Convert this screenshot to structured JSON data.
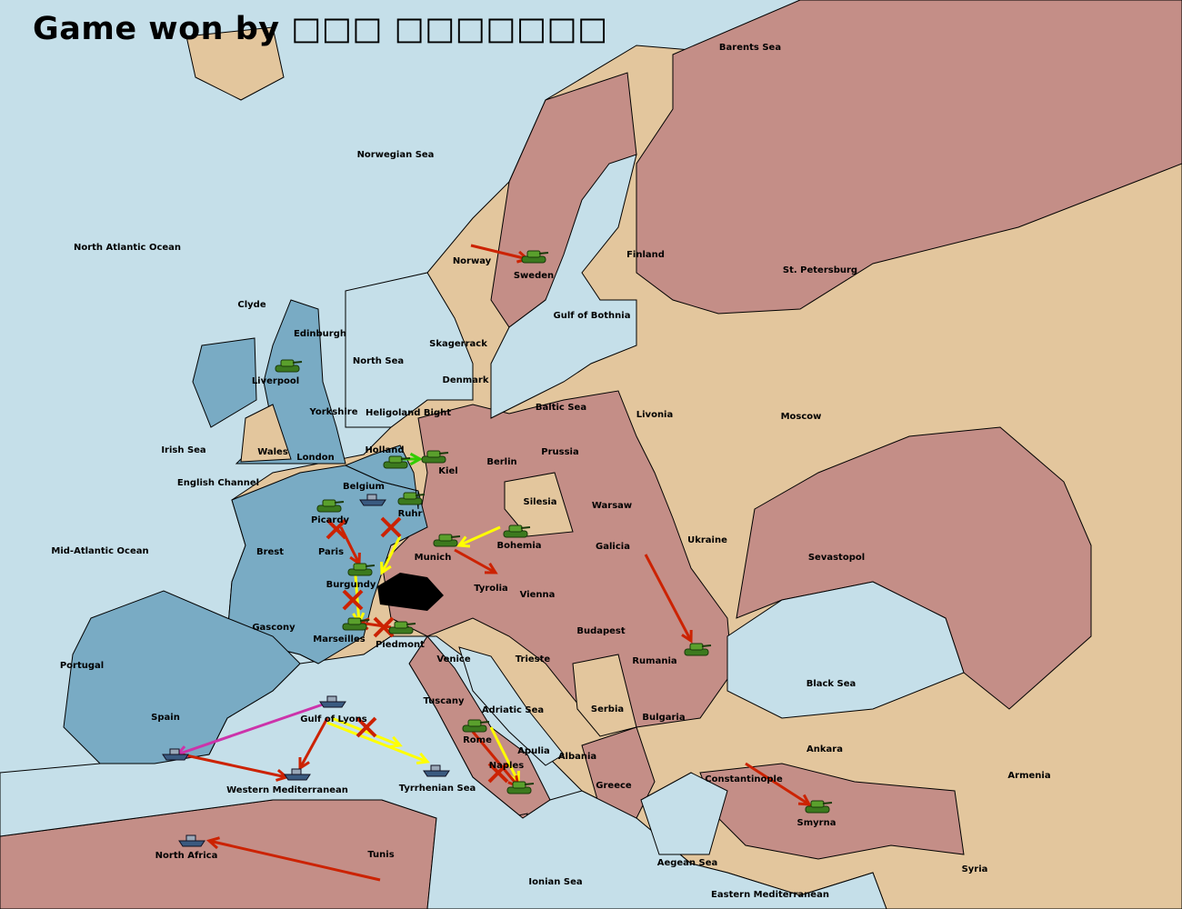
{
  "title": "Game won by □□□ □□□□□□□",
  "colors": {
    "sea": "#c5dfe9",
    "neutral": "#e3c69d",
    "power_red": "#c48e87",
    "power_blue": "#79abc4",
    "switzerland": "#000000",
    "move_arrow": "#cc2200",
    "support_arrow": "#ffff00",
    "convoy_arrow": "#cc33aa",
    "hold_arrow": "#33cc00"
  },
  "labels": [
    "Barents Sea",
    "Norwegian Sea",
    "North Atlantic Ocean",
    "Norway",
    "Sweden",
    "Finland",
    "St. Petersburg",
    "Gulf of Bothnia",
    "Clyde",
    "Edinburgh",
    "Skagerrack",
    "North Sea",
    "Liverpool",
    "Denmark",
    "Yorkshire",
    "Baltic Sea",
    "Livonia",
    "Moscow",
    "Heligoland Bight",
    "Irish Sea",
    "Wales",
    "London",
    "Holland",
    "Kiel",
    "Berlin",
    "Prussia",
    "English Channel",
    "Belgium",
    "Ruhr",
    "Silesia",
    "Warsaw",
    "Picardy",
    "Paris",
    "Brest",
    "Mid-Atlantic Ocean",
    "Ukraine",
    "Munich",
    "Bohemia",
    "Galicia",
    "Sevastopol",
    "Burgundy",
    "Tyrolia",
    "Vienna",
    "Gascony",
    "Budapest",
    "Marseilles",
    "Piedmont",
    "Venice",
    "Trieste",
    "Rumania",
    "Portugal",
    "Black Sea",
    "Spain",
    "Tuscany",
    "Adriatic Sea",
    "Serbia",
    "Bulgaria",
    "Gulf of Lyons",
    "Rome",
    "Apulia",
    "Albania",
    "Ankara",
    "Naples",
    "Constantinople",
    "Armenia",
    "Western Mediterranean",
    "Tyrrhenian Sea",
    "Greece",
    "Smyrna",
    "North Africa",
    "Tunis",
    "Aegean Sea",
    "Syria",
    "Ionian Sea",
    "Eastern Mediterranean"
  ],
  "units": [
    {
      "type": "army",
      "territory": "Sweden"
    },
    {
      "type": "army",
      "territory": "Liverpool"
    },
    {
      "type": "army",
      "territory": "Kiel"
    },
    {
      "type": "army",
      "territory": "Holland"
    },
    {
      "type": "army",
      "territory": "Ruhr"
    },
    {
      "type": "army",
      "territory": "Picardy"
    },
    {
      "type": "army",
      "territory": "Munich"
    },
    {
      "type": "army",
      "territory": "Bohemia"
    },
    {
      "type": "army",
      "territory": "Burgundy"
    },
    {
      "type": "army",
      "territory": "Marseilles"
    },
    {
      "type": "army",
      "territory": "Piedmont"
    },
    {
      "type": "army",
      "territory": "Rumania"
    },
    {
      "type": "army",
      "territory": "Rome"
    },
    {
      "type": "army",
      "territory": "Naples"
    },
    {
      "type": "army",
      "territory": "Smyrna"
    },
    {
      "type": "fleet",
      "territory": "Belgium"
    },
    {
      "type": "fleet",
      "territory": "Gulf of Lyons"
    },
    {
      "type": "fleet",
      "territory": "Spain"
    },
    {
      "type": "fleet",
      "territory": "Western Mediterranean"
    },
    {
      "type": "fleet",
      "territory": "Tyrrhenian Sea"
    },
    {
      "type": "fleet",
      "territory": "North Africa"
    }
  ]
}
